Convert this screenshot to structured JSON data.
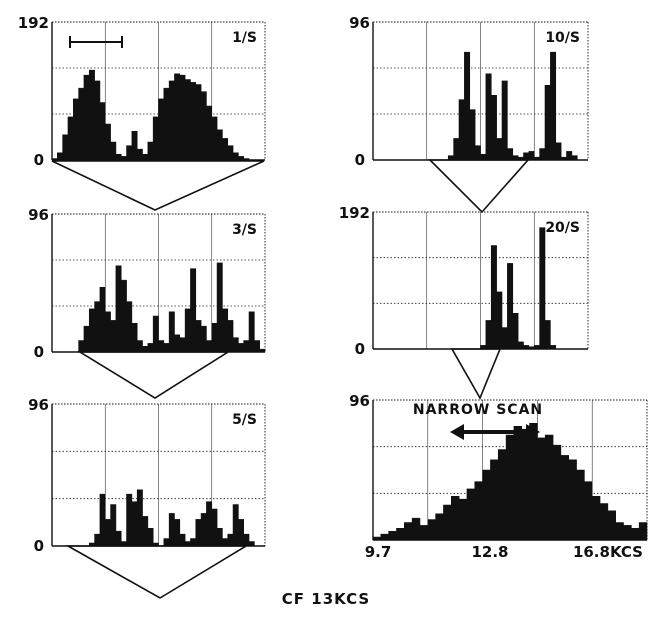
{
  "caption": "CF 13KCS",
  "chart_data": [
    {
      "type": "area",
      "panel": "1/S",
      "title": "1/S",
      "ylim": [
        0,
        192
      ],
      "yticks": [
        "192",
        "0"
      ],
      "scale_bar": true,
      "x": [
        0,
        1,
        2,
        3,
        4,
        5,
        6,
        7,
        8,
        9,
        10,
        11,
        12,
        13,
        14,
        15,
        16,
        17,
        18,
        19,
        20,
        21,
        22,
        23,
        24,
        25,
        26,
        27,
        28,
        29,
        30,
        31,
        32,
        33,
        34,
        35,
        36,
        37,
        38,
        39,
        40
      ],
      "values": [
        2,
        10,
        35,
        60,
        85,
        100,
        118,
        125,
        110,
        80,
        50,
        25,
        8,
        5,
        20,
        40,
        15,
        8,
        25,
        60,
        85,
        100,
        110,
        120,
        118,
        112,
        108,
        105,
        95,
        75,
        60,
        42,
        30,
        20,
        10,
        5,
        2,
        0,
        0,
        0,
        0
      ]
    },
    {
      "type": "area",
      "panel": "3/S",
      "title": "3/S",
      "ylim": [
        0,
        96
      ],
      "yticks": [
        "96",
        "0"
      ],
      "x": [
        0,
        1,
        2,
        3,
        4,
        5,
        6,
        7,
        8,
        9,
        10,
        11,
        12,
        13,
        14,
        15,
        16,
        17,
        18,
        19,
        20,
        21,
        22,
        23,
        24,
        25,
        26,
        27,
        28,
        29,
        30,
        31,
        32,
        33,
        34,
        35,
        36,
        37,
        38,
        39,
        40
      ],
      "values": [
        0,
        0,
        0,
        0,
        0,
        8,
        18,
        30,
        35,
        45,
        28,
        22,
        60,
        50,
        35,
        20,
        8,
        4,
        6,
        25,
        8,
        6,
        28,
        12,
        10,
        30,
        58,
        22,
        18,
        8,
        20,
        62,
        30,
        22,
        10,
        6,
        8,
        28,
        8,
        2,
        0
      ]
    },
    {
      "type": "area",
      "panel": "5/S",
      "title": "5/S",
      "ylim": [
        0,
        96
      ],
      "yticks": [
        "96",
        "0"
      ],
      "x": [
        0,
        1,
        2,
        3,
        4,
        5,
        6,
        7,
        8,
        9,
        10,
        11,
        12,
        13,
        14,
        15,
        16,
        17,
        18,
        19,
        20,
        21,
        22,
        23,
        24,
        25,
        26,
        27,
        28,
        29,
        30,
        31,
        32,
        33,
        34,
        35,
        36,
        37,
        38,
        39,
        40
      ],
      "values": [
        0,
        0,
        0,
        0,
        0,
        0,
        0,
        2,
        8,
        35,
        18,
        28,
        10,
        3,
        35,
        30,
        38,
        20,
        12,
        2,
        0,
        5,
        22,
        18,
        8,
        3,
        5,
        18,
        22,
        30,
        25,
        12,
        5,
        8,
        28,
        18,
        8,
        3,
        0,
        0,
        0
      ]
    },
    {
      "type": "area",
      "panel": "10/S",
      "title": "10/S",
      "ylim": [
        0,
        96
      ],
      "yticks": [
        "96",
        "0"
      ],
      "x": [
        0,
        1,
        2,
        3,
        4,
        5,
        6,
        7,
        8,
        9,
        10,
        11,
        12,
        13,
        14,
        15,
        16,
        17,
        18,
        19,
        20,
        21,
        22,
        23,
        24,
        25,
        26,
        27,
        28,
        29,
        30,
        31,
        32,
        33,
        34,
        35,
        36,
        37,
        38,
        39,
        40
      ],
      "values": [
        0,
        0,
        0,
        0,
        0,
        0,
        0,
        0,
        0,
        0,
        0,
        0,
        0,
        0,
        3,
        15,
        42,
        75,
        35,
        10,
        4,
        60,
        45,
        15,
        55,
        8,
        3,
        2,
        5,
        6,
        2,
        8,
        52,
        75,
        12,
        2,
        6,
        3,
        0,
        0,
        0
      ]
    },
    {
      "type": "area",
      "panel": "20/S",
      "title": "20/S",
      "ylim": [
        0,
        192
      ],
      "yticks": [
        "192",
        "0"
      ],
      "x": [
        0,
        1,
        2,
        3,
        4,
        5,
        6,
        7,
        8,
        9,
        10,
        11,
        12,
        13,
        14,
        15,
        16,
        17,
        18,
        19,
        20,
        21,
        22,
        23,
        24,
        25,
        26,
        27,
        28,
        29,
        30,
        31,
        32,
        33,
        34,
        35,
        36,
        37,
        38,
        39,
        40
      ],
      "values": [
        0,
        0,
        0,
        0,
        0,
        0,
        0,
        0,
        0,
        0,
        0,
        0,
        0,
        0,
        0,
        0,
        0,
        0,
        0,
        0,
        5,
        40,
        145,
        80,
        30,
        120,
        50,
        10,
        5,
        3,
        5,
        170,
        40,
        5,
        0,
        0,
        0,
        0,
        0,
        0,
        0
      ]
    },
    {
      "type": "area",
      "panel": "narrow scan",
      "title": "NARROW SCAN",
      "ylim": [
        0,
        96
      ],
      "yticks": [
        "96"
      ],
      "xlim": [
        9.7,
        16.8
      ],
      "xtick_labels": [
        "9.7",
        "12.8",
        "16.8KCS"
      ],
      "x": [
        9.7,
        9.9,
        10.1,
        10.3,
        10.5,
        10.7,
        10.9,
        11.1,
        11.3,
        11.5,
        11.7,
        11.9,
        12.1,
        12.3,
        12.5,
        12.7,
        12.9,
        13.1,
        13.3,
        13.5,
        13.7,
        13.9,
        14.1,
        14.3,
        14.5,
        14.7,
        14.9,
        15.1,
        15.3,
        15.5,
        15.7,
        15.9,
        16.1,
        16.3,
        16.5,
        16.7
      ],
      "values": [
        2,
        4,
        6,
        8,
        12,
        15,
        10,
        14,
        18,
        24,
        30,
        28,
        35,
        40,
        48,
        55,
        62,
        72,
        78,
        76,
        80,
        70,
        72,
        65,
        58,
        55,
        48,
        40,
        30,
        25,
        20,
        12,
        10,
        8,
        12,
        6
      ]
    }
  ]
}
